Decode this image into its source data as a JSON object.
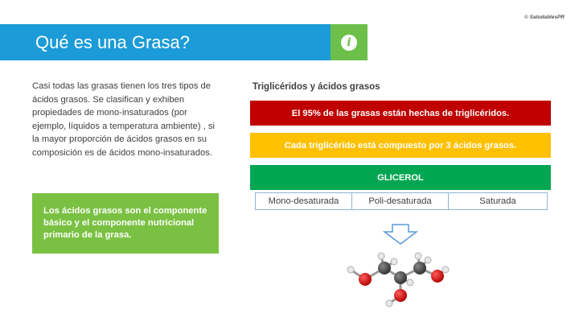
{
  "copyright": "© SaludablesPR",
  "title": "Qué es una Grasa?",
  "info_icon": "i",
  "body_text": "Casi todas las grasas tienen los tres tipos de ácidos grasos. Se clasifican y exhiben propiedades de mono-insaturados (por ejemplo, líquidos a temperatura ambiente) , si la mayor proporción de ácidos grasos en su composición es de ácidos mono-insaturados.",
  "callout": "Los ácidos grasos son el componente básico  y el componente nutricional primario de la grasa.",
  "diagram": {
    "subtitle": "Triglicéridos y ácidos grasos",
    "red_bar": "El 95% de las grasas están hechas de triglicéridos.",
    "yellow_bar": "Cada triglicérido está compuesto por 3 ácidos grasos.",
    "green_bar": "GLICEROL",
    "tabs": [
      "Mono-desaturada",
      "Poli-desaturada",
      "Saturada"
    ]
  },
  "colors": {
    "title_bar": "#1b9bd7",
    "accent_green": "#6cc04a",
    "red": "#c00000",
    "yellow": "#ffc000",
    "green": "#00a651"
  },
  "icons": [
    "info-icon",
    "down-arrow-icon",
    "glycerol-molecule-icon"
  ]
}
